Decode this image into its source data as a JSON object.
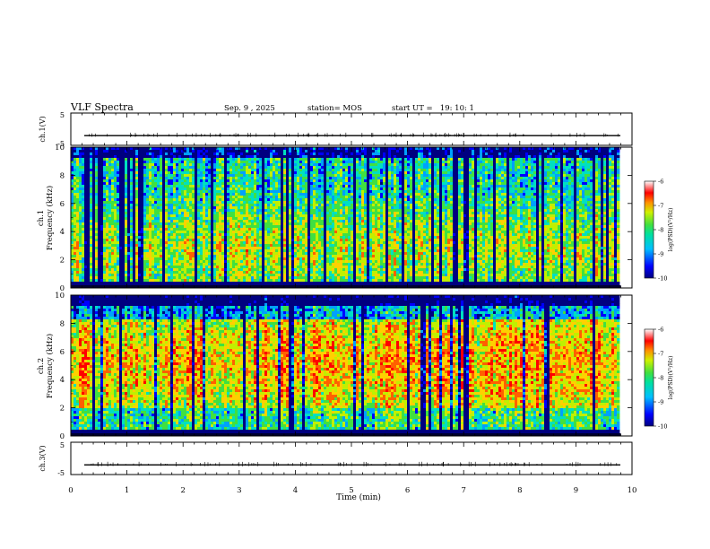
{
  "header": {
    "title": "VLF Spectra",
    "date": "Sep. 9 , 2025",
    "station": "station= MOS",
    "start_ut": "start UT =   19: 10: 1"
  },
  "chart_data": [
    {
      "id": "ch1_waveform",
      "type": "line",
      "ylabel": "ch.1(V)",
      "ylim": [
        -5,
        5
      ],
      "yticks": [
        "5",
        "-5"
      ],
      "xlim": [
        0,
        10
      ],
      "baseline": -2
    },
    {
      "id": "ch1_spectrogram",
      "type": "heatmap",
      "ylabel": "ch.1\nFrequency (kHz)",
      "ylabel_lines": [
        "ch.1",
        "Frequency (kHz)"
      ],
      "ylim": [
        0,
        10
      ],
      "yticks": [
        "0",
        "2",
        "4",
        "6",
        "8",
        "10"
      ],
      "xlim": [
        0,
        10
      ],
      "data_end_min": 9.8,
      "colorbar": {
        "label": "log(PSD)(V²/Hz)",
        "range": [
          -10,
          -6
        ],
        "ticks": [
          "-6",
          "-7",
          "-8",
          "-9",
          "-10"
        ]
      }
    },
    {
      "id": "ch2_spectrogram",
      "type": "heatmap",
      "ylabel": "ch.2\nFrequency (kHz)",
      "ylabel_lines": [
        "ch.2",
        "Frequency (kHz)"
      ],
      "ylim": [
        0,
        10
      ],
      "yticks": [
        "0",
        "2",
        "4",
        "6",
        "8",
        "10"
      ],
      "xlim": [
        0,
        10
      ],
      "data_end_min": 9.8,
      "colorbar": {
        "label": "log(PSD)(V²/Hz)",
        "range": [
          -10,
          -6
        ],
        "ticks": [
          "-6",
          "-7",
          "-8",
          "-9",
          "-10"
        ]
      }
    },
    {
      "id": "ch3_waveform",
      "type": "line",
      "ylabel": "ch.3(V)",
      "ylim": [
        -5,
        5
      ],
      "yticks": [
        "5",
        "-5"
      ],
      "xlim": [
        0,
        10
      ],
      "baseline": -2
    }
  ],
  "xaxis": {
    "label": "Time (min)",
    "ticks": [
      "0",
      "1",
      "2",
      "3",
      "4",
      "5",
      "6",
      "7",
      "8",
      "9",
      "10"
    ]
  },
  "colormap": [
    "#000080",
    "#0000ff",
    "#00a0ff",
    "#00e0c0",
    "#40e040",
    "#c0f000",
    "#ffd000",
    "#ff6000",
    "#ff0000",
    "#ffe8e8"
  ]
}
